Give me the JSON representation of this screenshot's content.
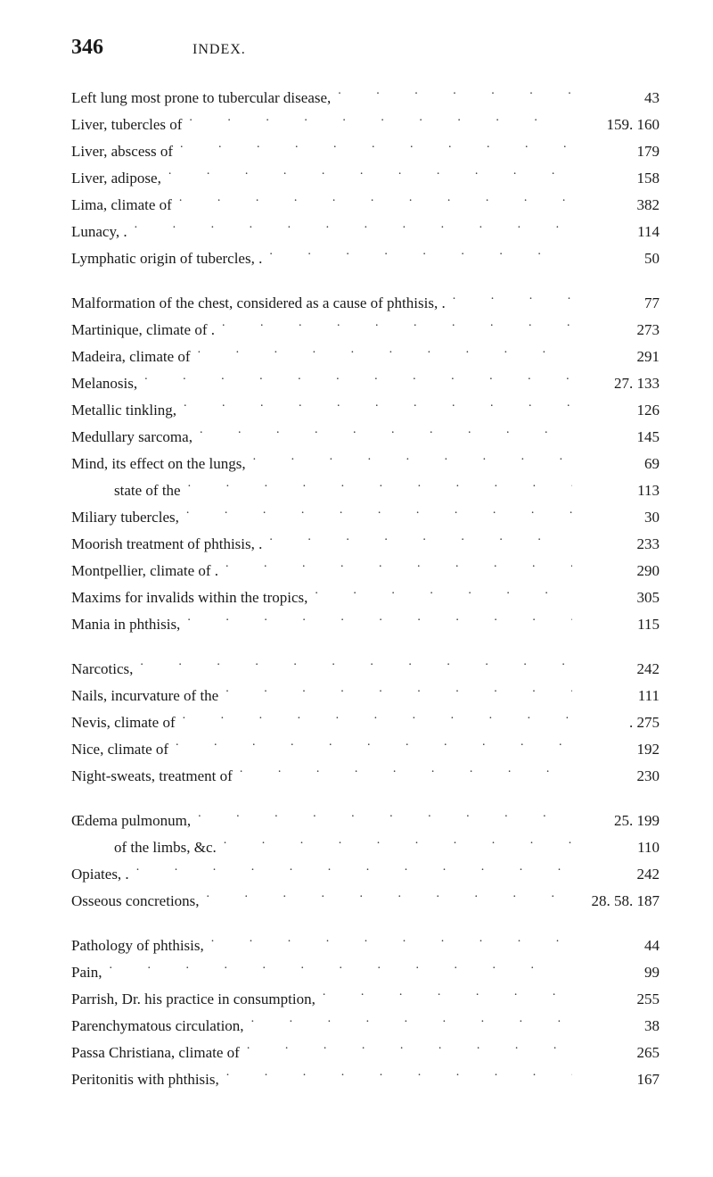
{
  "header": {
    "pageNumber": "346",
    "title": "INDEX."
  },
  "groups": [
    {
      "entries": [
        {
          "label": "Left lung most prone to tubercular disease,",
          "pages": "43"
        },
        {
          "label": "Liver, tubercles of",
          "pages": "159. 160"
        },
        {
          "label": "Liver, abscess of",
          "pages": "179"
        },
        {
          "label": "Liver, adipose,",
          "pages": "158"
        },
        {
          "label": "Lima, climate of",
          "pages": "382"
        },
        {
          "label": "Lunacy, .",
          "pages": "114"
        },
        {
          "label": "Lymphatic origin of tubercles, .",
          "pages": "50"
        }
      ]
    },
    {
      "entries": [
        {
          "label": "Malformation of the chest, considered as a cause of phthisis, .",
          "pages": "77"
        },
        {
          "label": "Martinique, climate of .",
          "pages": "273"
        },
        {
          "label": "Madeira, climate of",
          "pages": "291"
        },
        {
          "label": "Melanosis,",
          "pages": "27. 133"
        },
        {
          "label": "Metallic tinkling,",
          "pages": "126"
        },
        {
          "label": "Medullary sarcoma,",
          "pages": "145"
        },
        {
          "label": "Mind, its effect on the lungs,",
          "pages": "69"
        },
        {
          "label": "state of the",
          "pages": "113",
          "indent": 1
        },
        {
          "label": "Miliary tubercles,",
          "pages": "30"
        },
        {
          "label": "Moorish treatment of phthisis, .",
          "pages": "233"
        },
        {
          "label": "Montpellier, climate of .",
          "pages": "290"
        },
        {
          "label": "Maxims for invalids within the tropics,",
          "pages": "305"
        },
        {
          "label": "Mania in phthisis,",
          "pages": "115"
        }
      ]
    },
    {
      "entries": [
        {
          "label": "Narcotics,",
          "pages": "242"
        },
        {
          "label": "Nails, incurvature of the",
          "pages": "111"
        },
        {
          "label": "Nevis, climate of",
          "pages": ". 275"
        },
        {
          "label": "Nice, climate of",
          "pages": "192"
        },
        {
          "label": "Night-sweats, treatment of",
          "pages": "230"
        }
      ]
    },
    {
      "entries": [
        {
          "label": "Œdema pulmonum,",
          "pages": "25. 199"
        },
        {
          "label": "of the limbs, &c.",
          "pages": "110",
          "indent": 1
        },
        {
          "label": "Opiates, .",
          "pages": "242"
        },
        {
          "label": "Osseous concretions,",
          "pages": "28. 58. 187"
        }
      ]
    },
    {
      "entries": [
        {
          "label": "Pathology of phthisis,",
          "pages": "44"
        },
        {
          "label": "Pain,",
          "pages": "99"
        },
        {
          "label": "Parrish, Dr. his practice in consumption,",
          "pages": "255"
        },
        {
          "label": "Parenchymatous circulation,",
          "pages": "38"
        },
        {
          "label": "Passa Christiana, climate of",
          "pages": "265"
        },
        {
          "label": "Peritonitis with phthisis,",
          "pages": "167"
        }
      ]
    }
  ]
}
